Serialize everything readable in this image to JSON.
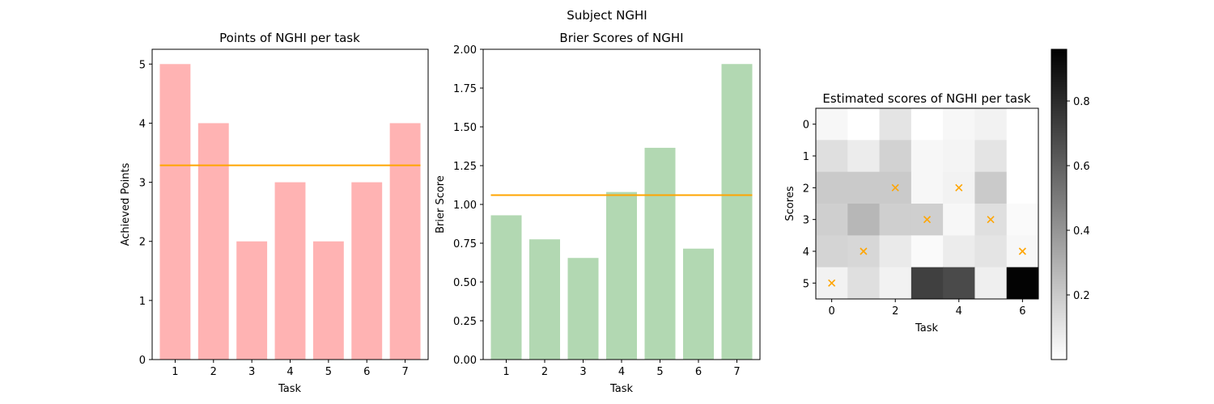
{
  "suptitle": "Subject NGHI",
  "chart_data": [
    {
      "type": "bar",
      "title": "Points of NGHI per task",
      "xlabel": "Task",
      "ylabel": "Achieved Points",
      "categories": [
        "1",
        "2",
        "3",
        "4",
        "5",
        "6",
        "7"
      ],
      "values": [
        5,
        4,
        2,
        3,
        2,
        3,
        4
      ],
      "mean_line": 3.286,
      "ylim": [
        0,
        5.25
      ],
      "yticks": [
        "0",
        "1",
        "2",
        "3",
        "4",
        "5"
      ],
      "bar_color": "#ffb3b3",
      "line_color": "#ffa500"
    },
    {
      "type": "bar",
      "title": "Brier Scores of NGHI",
      "xlabel": "Task",
      "ylabel": "Brier Score",
      "categories": [
        "1",
        "2",
        "3",
        "4",
        "5",
        "6",
        "7"
      ],
      "values": [
        0.93,
        0.775,
        0.655,
        1.08,
        1.365,
        0.715,
        1.905
      ],
      "mean_line": 1.06,
      "ylim": [
        0,
        2.0
      ],
      "yticks": [
        "0.00",
        "0.25",
        "0.50",
        "0.75",
        "1.00",
        "1.25",
        "1.50",
        "1.75",
        "2.00"
      ],
      "bar_color": "#b2d8b2",
      "line_color": "#ffa500"
    },
    {
      "type": "heatmap",
      "title": "Estimated scores of NGHI per task",
      "xlabel": "Task",
      "ylabel": "Scores",
      "xticks": [
        "0",
        "2",
        "4",
        "6"
      ],
      "yticks": [
        "0",
        "1",
        "2",
        "3",
        "4",
        "5"
      ],
      "matrix": [
        [
          0.03,
          0.0,
          0.1,
          0.0,
          0.03,
          0.05,
          0.0
        ],
        [
          0.12,
          0.07,
          0.17,
          0.03,
          0.04,
          0.1,
          0.0
        ],
        [
          0.2,
          0.2,
          0.2,
          0.03,
          0.05,
          0.2,
          0.0
        ],
        [
          0.18,
          0.27,
          0.18,
          0.18,
          0.03,
          0.12,
          0.02
        ],
        [
          0.16,
          0.15,
          0.08,
          0.02,
          0.07,
          0.1,
          0.03
        ],
        [
          0.05,
          0.12,
          0.05,
          0.72,
          0.68,
          0.06,
          0.95
        ]
      ],
      "markers": [
        [
          0,
          5
        ],
        [
          1,
          4
        ],
        [
          2,
          2
        ],
        [
          3,
          3
        ],
        [
          4,
          2
        ],
        [
          5,
          3
        ],
        [
          6,
          4
        ]
      ],
      "marker_color": "#ffa500",
      "colorbar": {
        "range": [
          0.0,
          0.96
        ],
        "ticks": [
          "0.2",
          "0.4",
          "0.6",
          "0.8"
        ],
        "tick_values": [
          0.2,
          0.4,
          0.6,
          0.8
        ]
      }
    }
  ]
}
